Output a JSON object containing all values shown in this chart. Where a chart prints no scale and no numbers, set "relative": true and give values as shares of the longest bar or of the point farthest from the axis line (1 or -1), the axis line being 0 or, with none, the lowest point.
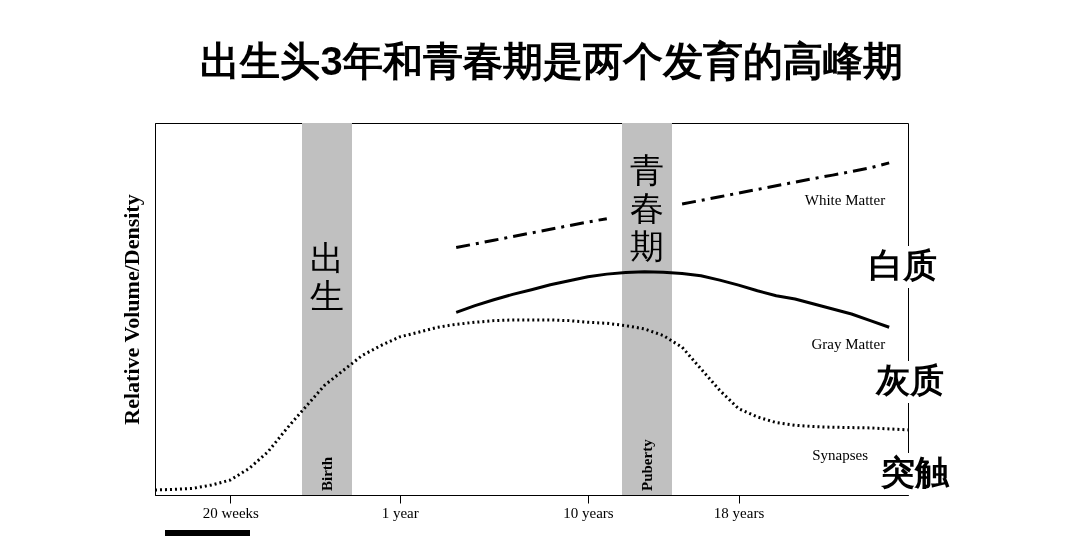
{
  "chart_data": {
    "type": "line",
    "title": "出生头3年和青春期是两个发育的高峰期",
    "ylabel": "Relative Volume/Density",
    "relative": true,
    "grid": false,
    "legend": false,
    "marker": "none",
    "categories": [
      null,
      null,
      null,
      null,
      "20 weeks",
      null,
      null,
      null,
      null,
      null,
      null,
      null,
      null,
      "1 year",
      null,
      null,
      null,
      null,
      null,
      null,
      null,
      null,
      null,
      "10 years",
      null,
      null,
      null,
      null,
      null,
      null,
      null,
      "18 years",
      null,
      null,
      null,
      null,
      null,
      null,
      null,
      null,
      null
    ],
    "series": [
      {
        "name": "White Matter",
        "color": "#000000",
        "line_style": "dashed",
        "values": [
          null,
          null,
          null,
          null,
          null,
          null,
          null,
          null,
          null,
          null,
          null,
          null,
          null,
          null,
          null,
          null,
          0.745,
          0.756,
          0.767,
          0.778,
          0.789,
          0.8,
          0.811,
          0.822,
          0.832,
          null,
          null,
          null,
          0.876,
          0.887,
          0.898,
          0.909,
          0.92,
          0.931,
          0.942,
          0.953,
          0.963,
          0.974,
          0.985,
          1.0,
          null
        ]
      },
      {
        "name": "Gray Matter",
        "color": "#000000",
        "line_style": "solid",
        "values": [
          null,
          null,
          null,
          null,
          null,
          null,
          null,
          null,
          null,
          null,
          null,
          null,
          null,
          null,
          null,
          null,
          0.55,
          0.57,
          0.588,
          0.604,
          0.618,
          0.633,
          0.645,
          0.657,
          0.665,
          0.67,
          0.672,
          0.671,
          0.667,
          0.66,
          0.647,
          0.632,
          0.615,
          0.6,
          0.59,
          0.575,
          0.56,
          0.545,
          0.525,
          0.505,
          null
        ]
      },
      {
        "name": "Synapses",
        "color": "#000000",
        "line_style": "dotted",
        "values": [
          0.015,
          0.017,
          0.02,
          0.03,
          0.045,
          0.08,
          0.13,
          0.2,
          0.265,
          0.33,
          0.375,
          0.42,
          0.45,
          0.476,
          0.49,
          0.505,
          0.514,
          0.52,
          0.525,
          0.527,
          0.527,
          0.527,
          0.525,
          0.52,
          0.517,
          0.51,
          0.5,
          0.48,
          0.445,
          0.38,
          0.315,
          0.26,
          0.235,
          0.218,
          0.21,
          0.206,
          0.204,
          0.203,
          0.202,
          0.199,
          0.196
        ]
      }
    ],
    "annotations": [
      "白质",
      "灰质",
      "突触",
      "出生",
      "青春期",
      "Birth",
      "Puberty"
    ]
  }
}
